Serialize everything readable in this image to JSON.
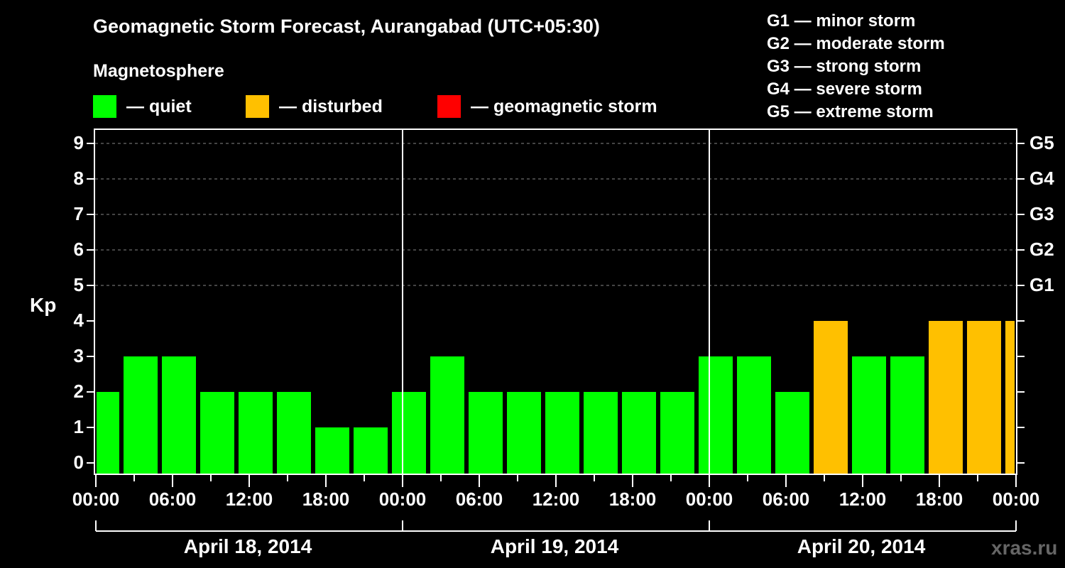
{
  "title": "Geomagnetic Storm Forecast, Aurangabad (UTC+05:30)",
  "subtitle": "Magnetosphere",
  "legend": [
    {
      "label": "— quiet",
      "color": "#00ff00"
    },
    {
      "label": "— disturbed",
      "color": "#ffc000"
    },
    {
      "label": "— geomagnetic storm",
      "color": "#ff0000"
    }
  ],
  "g_scale": [
    "G1 — minor storm",
    "G2 — moderate storm",
    "G3 — strong storm",
    "G4 — severe storm",
    "G5 — extreme storm"
  ],
  "y_axis_label": "Kp",
  "y_ticks": [
    "0",
    "1",
    "2",
    "3",
    "4",
    "5",
    "6",
    "7",
    "8",
    "9"
  ],
  "g_ticks": [
    "G1",
    "G2",
    "G3",
    "G4",
    "G5"
  ],
  "x_ticks": [
    "00:00",
    "06:00",
    "12:00",
    "18:00",
    "00:00",
    "06:00",
    "12:00",
    "18:00",
    "00:00",
    "06:00",
    "12:00",
    "18:00",
    "00:00"
  ],
  "days": [
    "April 18, 2014",
    "April 19, 2014",
    "April 20, 2014"
  ],
  "watermark": "xras.ru",
  "chart_data": {
    "type": "bar",
    "title": "Geomagnetic Storm Forecast, Aurangabad (UTC+05:30)",
    "xlabel": "",
    "ylabel": "Kp",
    "ylim": [
      0,
      9
    ],
    "grid": "dashed horizontal at Kp 5-9",
    "secondary_y_labels": {
      "5": "G1",
      "6": "G2",
      "7": "G3",
      "8": "G4",
      "9": "G5"
    },
    "categories": [
      "Apr 18 00:00",
      "Apr 18 02:30",
      "Apr 18 05:30",
      "Apr 18 08:30",
      "Apr 18 11:30",
      "Apr 18 14:30",
      "Apr 18 17:30",
      "Apr 18 20:30",
      "Apr 18 23:30",
      "Apr 19 02:30",
      "Apr 19 05:30",
      "Apr 19 08:30",
      "Apr 19 11:30",
      "Apr 19 14:30",
      "Apr 19 17:30",
      "Apr 19 20:30",
      "Apr 19 23:30",
      "Apr 20 02:30",
      "Apr 20 05:30",
      "Apr 20 08:30",
      "Apr 20 11:30",
      "Apr 20 14:30",
      "Apr 20 17:30",
      "Apr 20 20:30",
      "Apr 20 23:30"
    ],
    "values": [
      2,
      3,
      3,
      2,
      2,
      2,
      1,
      1,
      2,
      3,
      2,
      2,
      2,
      2,
      2,
      2,
      3,
      3,
      2,
      4,
      3,
      3,
      4,
      4,
      4
    ],
    "status": [
      "quiet",
      "quiet",
      "quiet",
      "quiet",
      "quiet",
      "quiet",
      "quiet",
      "quiet",
      "quiet",
      "quiet",
      "quiet",
      "quiet",
      "quiet",
      "quiet",
      "quiet",
      "quiet",
      "quiet",
      "quiet",
      "quiet",
      "disturbed",
      "quiet",
      "quiet",
      "disturbed",
      "disturbed",
      "disturbed"
    ],
    "legend": [
      "quiet",
      "disturbed",
      "geomagnetic storm"
    ]
  }
}
